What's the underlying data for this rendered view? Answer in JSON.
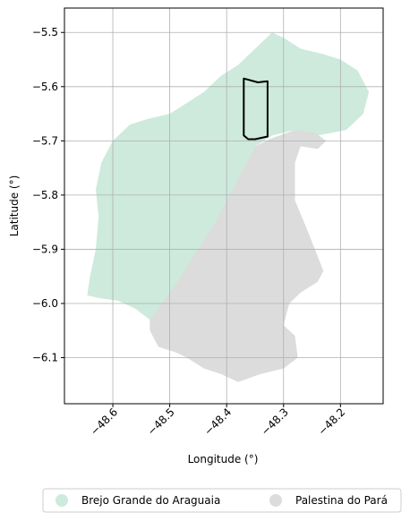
{
  "chart_data": {
    "type": "map",
    "xlabel": "Longitude (°)",
    "ylabel": "Latitude (°)",
    "xlim": [
      -48.685,
      -48.125
    ],
    "ylim": [
      -6.185,
      -5.455
    ],
    "x_ticks": [
      {
        "value": -48.6,
        "label": "−48.6"
      },
      {
        "value": -48.5,
        "label": "−48.5"
      },
      {
        "value": -48.4,
        "label": "−48.4"
      },
      {
        "value": -48.3,
        "label": "−48.3"
      },
      {
        "value": -48.2,
        "label": "−48.2"
      }
    ],
    "y_ticks": [
      {
        "value": -5.5,
        "label": "−5.5"
      },
      {
        "value": -5.6,
        "label": "−5.6"
      },
      {
        "value": -5.7,
        "label": "−5.7"
      },
      {
        "value": -5.8,
        "label": "−5.8"
      },
      {
        "value": -5.9,
        "label": "−5.9"
      },
      {
        "value": -6.0,
        "label": "−6.0"
      },
      {
        "value": -6.1,
        "label": "−6.1"
      }
    ],
    "grid": true,
    "legend_position": "bottom",
    "regions": [
      {
        "name": "Brejo Grande do Araguaia",
        "color": "#cdeadd",
        "coords": [
          [
            -48.32,
            -5.5
          ],
          [
            -48.3,
            -5.51
          ],
          [
            -48.27,
            -5.53
          ],
          [
            -48.23,
            -5.54
          ],
          [
            -48.2,
            -5.55
          ],
          [
            -48.17,
            -5.57
          ],
          [
            -48.15,
            -5.61
          ],
          [
            -48.16,
            -5.65
          ],
          [
            -48.19,
            -5.68
          ],
          [
            -48.24,
            -5.69
          ],
          [
            -48.28,
            -5.68
          ],
          [
            -48.32,
            -5.69
          ],
          [
            -48.35,
            -5.71
          ],
          [
            -48.37,
            -5.75
          ],
          [
            -48.39,
            -5.8
          ],
          [
            -48.42,
            -5.86
          ],
          [
            -48.45,
            -5.91
          ],
          [
            -48.48,
            -5.96
          ],
          [
            -48.5,
            -6.0
          ],
          [
            -48.52,
            -6.02
          ],
          [
            -48.535,
            -6.03
          ],
          [
            -48.56,
            -6.01
          ],
          [
            -48.59,
            -5.995
          ],
          [
            -48.625,
            -5.99
          ],
          [
            -48.645,
            -5.985
          ],
          [
            -48.64,
            -5.95
          ],
          [
            -48.63,
            -5.9
          ],
          [
            -48.625,
            -5.84
          ],
          [
            -48.63,
            -5.79
          ],
          [
            -48.62,
            -5.74
          ],
          [
            -48.6,
            -5.7
          ],
          [
            -48.57,
            -5.67
          ],
          [
            -48.54,
            -5.66
          ],
          [
            -48.5,
            -5.65
          ],
          [
            -48.47,
            -5.63
          ],
          [
            -48.44,
            -5.61
          ],
          [
            -48.41,
            -5.58
          ],
          [
            -48.38,
            -5.56
          ],
          [
            -48.36,
            -5.54
          ],
          [
            -48.34,
            -5.52
          ]
        ]
      },
      {
        "name": "Palestina do Pará",
        "color": "#dcdcdc",
        "coords": [
          [
            -48.35,
            -5.71
          ],
          [
            -48.32,
            -5.695
          ],
          [
            -48.28,
            -5.68
          ],
          [
            -48.245,
            -5.685
          ],
          [
            -48.225,
            -5.7
          ],
          [
            -48.24,
            -5.715
          ],
          [
            -48.27,
            -5.71
          ],
          [
            -48.28,
            -5.74
          ],
          [
            -48.28,
            -5.81
          ],
          [
            -48.26,
            -5.86
          ],
          [
            -48.245,
            -5.9
          ],
          [
            -48.23,
            -5.94
          ],
          [
            -48.24,
            -5.96
          ],
          [
            -48.27,
            -5.98
          ],
          [
            -48.29,
            -6.0
          ],
          [
            -48.3,
            -6.04
          ],
          [
            -48.28,
            -6.06
          ],
          [
            -48.275,
            -6.1
          ],
          [
            -48.3,
            -6.12
          ],
          [
            -48.34,
            -6.13
          ],
          [
            -48.38,
            -6.145
          ],
          [
            -48.41,
            -6.13
          ],
          [
            -48.44,
            -6.12
          ],
          [
            -48.47,
            -6.1
          ],
          [
            -48.49,
            -6.09
          ],
          [
            -48.52,
            -6.08
          ],
          [
            -48.535,
            -6.05
          ],
          [
            -48.535,
            -6.03
          ],
          [
            -48.52,
            -6.01
          ],
          [
            -48.5,
            -5.98
          ],
          [
            -48.48,
            -5.95
          ],
          [
            -48.45,
            -5.9
          ],
          [
            -48.42,
            -5.85
          ],
          [
            -48.39,
            -5.79
          ],
          [
            -48.37,
            -5.75
          ]
        ]
      }
    ],
    "overlay": {
      "stroke": "#000000",
      "coords": [
        [
          -48.37,
          -5.585
        ],
        [
          -48.345,
          -5.592
        ],
        [
          -48.328,
          -5.59
        ],
        [
          -48.328,
          -5.692
        ],
        [
          -48.35,
          -5.697
        ],
        [
          -48.362,
          -5.697
        ],
        [
          -48.37,
          -5.69
        ]
      ]
    },
    "legend": [
      {
        "label": "Brejo Grande do Araguaia",
        "color": "#cdeadd"
      },
      {
        "label": "Palestina do Pará",
        "color": "#dcdcdc"
      }
    ]
  }
}
